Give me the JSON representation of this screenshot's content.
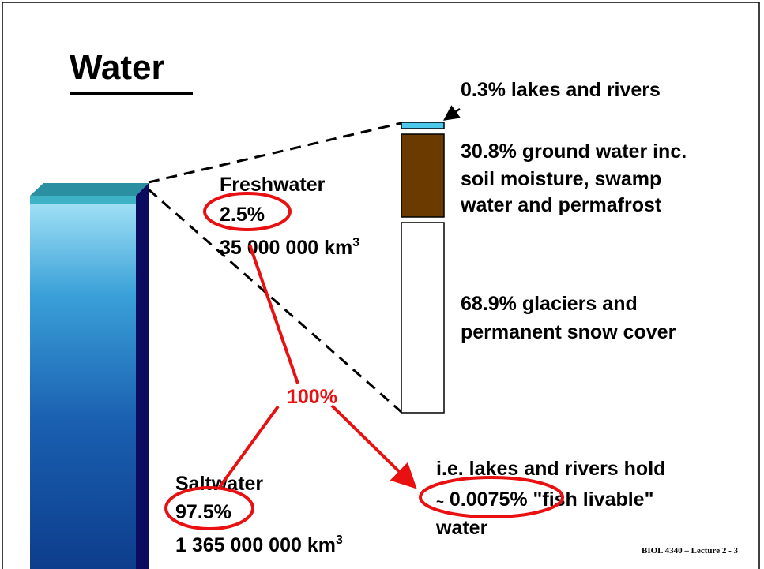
{
  "title": "Water",
  "freshwater": {
    "label": "Freshwater",
    "percent": "2.5%",
    "volume": "35 000 000 km",
    "volume_sup": "3"
  },
  "saltwater": {
    "label": "Saltwater",
    "percent": "97.5%",
    "volume": "1 365 000 000 km",
    "volume_sup": "3"
  },
  "total": "100%",
  "breakdown": {
    "lakes": "0.3% lakes and rivers",
    "ground": [
      "30.8% ground water inc.",
      "soil moisture, swamp",
      "water and permafrost"
    ],
    "glaciers": [
      "68.9% glaciers and",
      "permanent snow cover"
    ]
  },
  "note": {
    "line1": "i.e. lakes and rivers hold",
    "tilde": "~",
    "line2": " 0.0075% \"fish livable\"",
    "line3": "water"
  },
  "footer": "BIOL 4340 – Lecture 2 - 3"
}
